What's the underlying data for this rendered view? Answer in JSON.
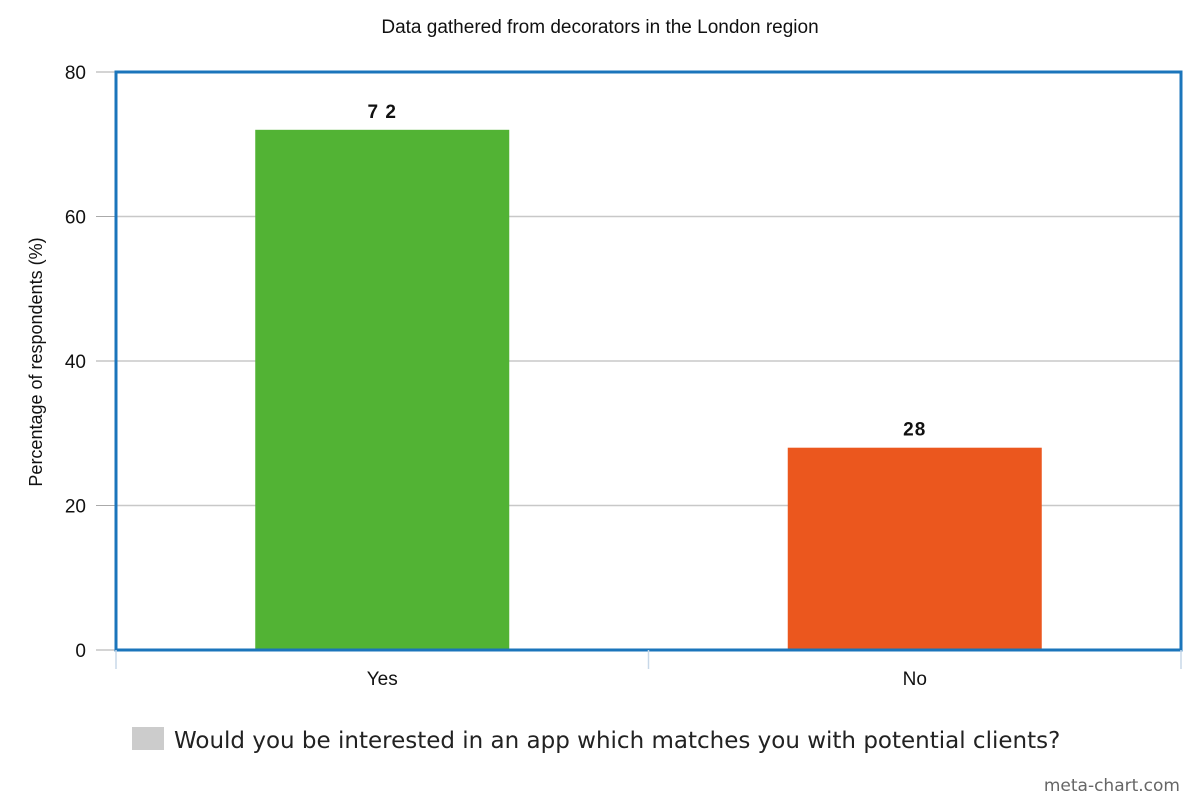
{
  "chart_data": {
    "type": "bar",
    "title": "Data gathered from decorators in the London region",
    "xlabel": "",
    "ylabel": "Percentage of respondents (%)",
    "categories": [
      "Yes",
      "No"
    ],
    "series": [
      {
        "name": "Would you be interested in an app which matches you with potential clients?",
        "values": [
          72,
          28
        ],
        "colors": [
          "#52b334",
          "#eb571e"
        ]
      }
    ],
    "data_labels": [
      "7 2",
      "28"
    ],
    "ylim": [
      0,
      80
    ],
    "yticks": [
      0,
      20,
      40,
      60,
      80
    ],
    "grid": true,
    "legend_position": "bottom",
    "legend_swatch_color": "#cccccc",
    "frame_color": "#1b75bb",
    "grid_color": "#c8c8c8"
  },
  "credit": "meta-chart.com"
}
